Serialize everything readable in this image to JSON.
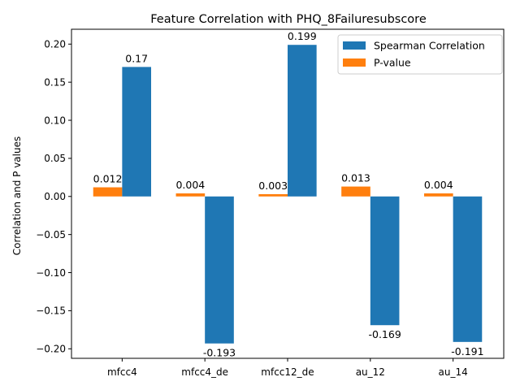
{
  "chart_data": {
    "type": "bar",
    "title": "Feature Correlation with PHQ_8Failuresubscore",
    "xlabel": "",
    "ylabel": "Correlation and P values",
    "categories": [
      "mfcc4",
      "mfcc4_de",
      "mfcc12_de",
      "au_12",
      "au_14"
    ],
    "series": [
      {
        "name": "Spearman Correlation",
        "color": "#1f77b4",
        "values": [
          0.17,
          -0.193,
          0.199,
          -0.169,
          -0.191
        ],
        "labels": [
          "0.17",
          "-0.193",
          "0.199",
          "-0.169",
          "-0.191"
        ]
      },
      {
        "name": "P-value",
        "color": "#ff7f0e",
        "values": [
          0.012,
          0.004,
          0.003,
          0.013,
          0.004
        ],
        "labels": [
          "0.012",
          "0.004",
          "0.003",
          "0.013",
          "0.004"
        ]
      }
    ],
    "ylim": [
      -0.2125,
      0.2195
    ],
    "yticks": [
      -0.2,
      -0.15,
      -0.1,
      -0.05,
      0.0,
      0.05,
      0.1,
      0.15,
      0.2
    ],
    "ytick_labels": [
      "−0.20",
      "−0.15",
      "−0.10",
      "−0.05",
      "0.00",
      "0.05",
      "0.10",
      "0.15",
      "0.20"
    ],
    "grid": false,
    "legend_position": "top-right"
  }
}
